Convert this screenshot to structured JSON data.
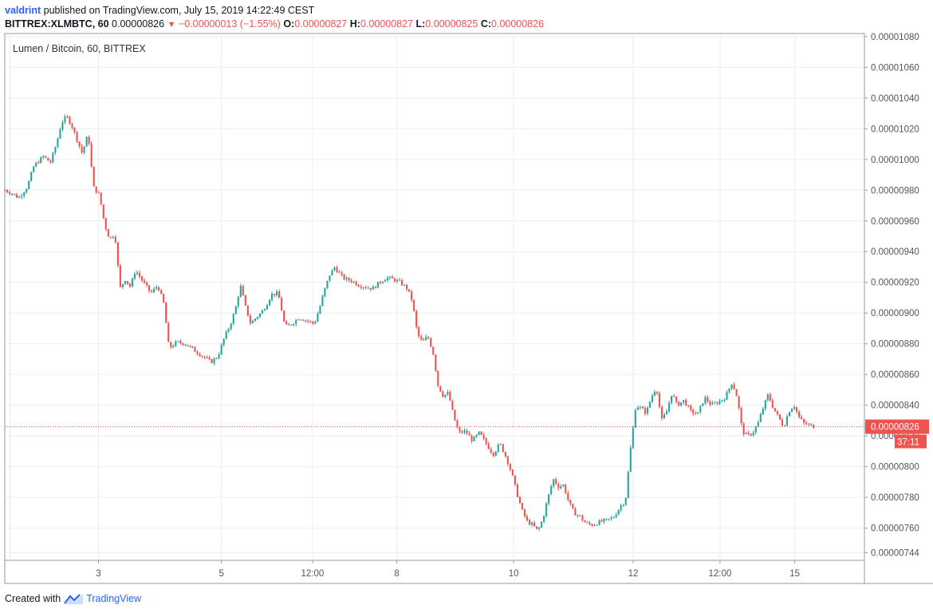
{
  "header": {
    "author": "valdrint",
    "published": "published on TradingView.com, July 15, 2019 14:22:49 CEST",
    "symbol": "BITTREX:XLMBTC, 60",
    "last": "0.00000826",
    "change": "−0.00000013 (−1.55%)",
    "o_label": "O:",
    "o": "0.00000827",
    "h_label": "H:",
    "h": "0.00000827",
    "l_label": "L:",
    "l": "0.00000825",
    "c_label": "C:",
    "c": "0.00000826"
  },
  "footer": {
    "created_with": "Created with",
    "brand": "TradingView"
  },
  "colors": {
    "up": "#26a69a",
    "down": "#ef5350",
    "grid": "#e6eef5",
    "axis": "#555555",
    "price_tag": "#ef5350"
  },
  "chart_data": {
    "type": "candlestick",
    "title": "Lumen / Bitcoin, 60, BITTREX",
    "y_ticks": [
      "0.00001080",
      "0.00001060",
      "0.00001040",
      "0.00001020",
      "0.00001000",
      "0.00000980",
      "0.00000960",
      "0.00000940",
      "0.00000920",
      "0.00000900",
      "0.00000880",
      "0.00000860",
      "0.00000840",
      "0.00000820",
      "0.00000800",
      "0.00000780",
      "0.00000760",
      "0.00000744"
    ],
    "ylim": [
      7.39e-06,
      1.082e-05
    ],
    "x_ticks": [
      {
        "label": "3",
        "t": 0.109
      },
      {
        "label": "5",
        "t": 0.252
      },
      {
        "label": "12:00",
        "t": 0.358
      },
      {
        "label": "8",
        "t": 0.456
      },
      {
        "label": "10",
        "t": 0.592
      },
      {
        "label": "12",
        "t": 0.731
      },
      {
        "label": "12:00",
        "t": 0.832
      },
      {
        "label": "15",
        "t": 0.919
      }
    ],
    "x_grid": [
      0.006,
      0.109,
      0.252,
      0.358,
      0.456,
      0.592,
      0.731,
      0.832,
      0.919
    ],
    "last_price": "0.00000826",
    "last_price_value": 8.26e-06,
    "countdown": "37:11",
    "path": [
      [
        0.0,
        980
      ],
      [
        0.008,
        978
      ],
      [
        0.016,
        975
      ],
      [
        0.026,
        982
      ],
      [
        0.034,
        996
      ],
      [
        0.045,
        1002
      ],
      [
        0.053,
        998
      ],
      [
        0.06,
        1010
      ],
      [
        0.066,
        1024
      ],
      [
        0.072,
        1028
      ],
      [
        0.078,
        1022
      ],
      [
        0.084,
        1013
      ],
      [
        0.09,
        1004
      ],
      [
        0.097,
        1017
      ],
      [
        0.103,
        982
      ],
      [
        0.11,
        977
      ],
      [
        0.116,
        958
      ],
      [
        0.122,
        948
      ],
      [
        0.128,
        952
      ],
      [
        0.134,
        916
      ],
      [
        0.14,
        922
      ],
      [
        0.146,
        917
      ],
      [
        0.152,
        928
      ],
      [
        0.16,
        921
      ],
      [
        0.17,
        913
      ],
      [
        0.178,
        918
      ],
      [
        0.185,
        906
      ],
      [
        0.191,
        877
      ],
      [
        0.2,
        881
      ],
      [
        0.21,
        880
      ],
      [
        0.22,
        876
      ],
      [
        0.23,
        872
      ],
      [
        0.24,
        868
      ],
      [
        0.248,
        872
      ],
      [
        0.256,
        885
      ],
      [
        0.262,
        892
      ],
      [
        0.268,
        902
      ],
      [
        0.274,
        918
      ],
      [
        0.28,
        904
      ],
      [
        0.286,
        893
      ],
      [
        0.292,
        897
      ],
      [
        0.298,
        900
      ],
      [
        0.304,
        905
      ],
      [
        0.31,
        912
      ],
      [
        0.318,
        913
      ],
      [
        0.326,
        891
      ],
      [
        0.334,
        893
      ],
      [
        0.342,
        897
      ],
      [
        0.352,
        895
      ],
      [
        0.36,
        893
      ],
      [
        0.366,
        903
      ],
      [
        0.372,
        915
      ],
      [
        0.378,
        925
      ],
      [
        0.384,
        930
      ],
      [
        0.39,
        925
      ],
      [
        0.396,
        922
      ],
      [
        0.404,
        921
      ],
      [
        0.412,
        918
      ],
      [
        0.42,
        917
      ],
      [
        0.428,
        916
      ],
      [
        0.436,
        920
      ],
      [
        0.444,
        923
      ],
      [
        0.452,
        922
      ],
      [
        0.46,
        920
      ],
      [
        0.468,
        916
      ],
      [
        0.474,
        908
      ],
      [
        0.48,
        886
      ],
      [
        0.486,
        881
      ],
      [
        0.492,
        885
      ],
      [
        0.498,
        875
      ],
      [
        0.504,
        853
      ],
      [
        0.51,
        846
      ],
      [
        0.516,
        848
      ],
      [
        0.522,
        833
      ],
      [
        0.528,
        822
      ],
      [
        0.536,
        823
      ],
      [
        0.544,
        817
      ],
      [
        0.552,
        822
      ],
      [
        0.56,
        815
      ],
      [
        0.568,
        808
      ],
      [
        0.576,
        815
      ],
      [
        0.584,
        805
      ],
      [
        0.59,
        795
      ],
      [
        0.596,
        782
      ],
      [
        0.602,
        771
      ],
      [
        0.608,
        764
      ],
      [
        0.614,
        762
      ],
      [
        0.62,
        758
      ],
      [
        0.626,
        766
      ],
      [
        0.632,
        780
      ],
      [
        0.638,
        792
      ],
      [
        0.644,
        787
      ],
      [
        0.65,
        788
      ],
      [
        0.656,
        777
      ],
      [
        0.662,
        770
      ],
      [
        0.668,
        768
      ],
      [
        0.676,
        763
      ],
      [
        0.684,
        762
      ],
      [
        0.692,
        764
      ],
      [
        0.7,
        765
      ],
      [
        0.708,
        767
      ],
      [
        0.716,
        774
      ],
      [
        0.722,
        778
      ],
      [
        0.728,
        812
      ],
      [
        0.734,
        840
      ],
      [
        0.74,
        838
      ],
      [
        0.746,
        835
      ],
      [
        0.752,
        845
      ],
      [
        0.758,
        852
      ],
      [
        0.764,
        830
      ],
      [
        0.77,
        836
      ],
      [
        0.776,
        848
      ],
      [
        0.782,
        840
      ],
      [
        0.79,
        843
      ],
      [
        0.798,
        836
      ],
      [
        0.806,
        834
      ],
      [
        0.814,
        845
      ],
      [
        0.822,
        840
      ],
      [
        0.83,
        842
      ],
      [
        0.838,
        845
      ],
      [
        0.846,
        855
      ],
      [
        0.852,
        845
      ],
      [
        0.858,
        823
      ],
      [
        0.864,
        820
      ],
      [
        0.87,
        822
      ],
      [
        0.876,
        828
      ],
      [
        0.882,
        838
      ],
      [
        0.888,
        847
      ],
      [
        0.894,
        838
      ],
      [
        0.9,
        832
      ],
      [
        0.906,
        826
      ],
      [
        0.912,
        836
      ],
      [
        0.918,
        840
      ],
      [
        0.924,
        832
      ],
      [
        0.93,
        828
      ],
      [
        0.936,
        827
      ],
      [
        0.942,
        826
      ]
    ]
  }
}
